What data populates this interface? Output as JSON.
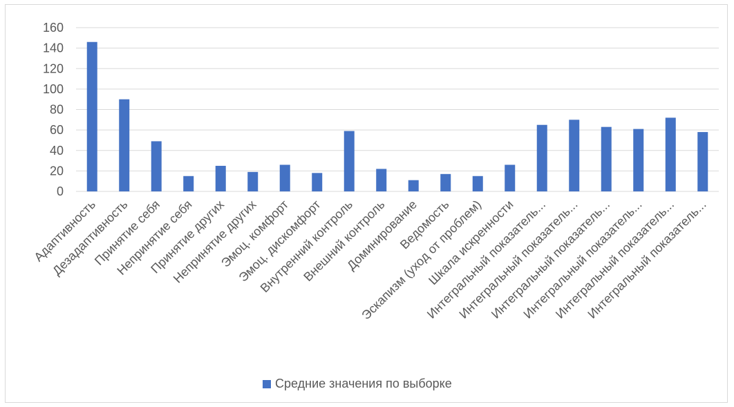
{
  "chart_data": {
    "type": "bar",
    "categories": [
      "Адаптивность",
      "Дезадаптивность",
      "Принятие себя",
      "Непринятие себя",
      "Принятие других",
      "Непринятие других",
      "Эмоц. комфорт",
      "Эмоц. дискомфорт",
      "Внутренний контроль",
      "Внешний контроль",
      "Доминирование",
      "Ведомость",
      "Эскапизм (уход от проблем)",
      "Шкала искренности",
      "Интегральный показатель...",
      "Интегральный показатель...",
      "Интегральный показатель...",
      "Интегральный показатель...",
      "Интегральный показатель...",
      "Интегральный показатель..."
    ],
    "series": [
      {
        "name": "Средние значения по выборке",
        "color": "#4472c4",
        "values": [
          146,
          90,
          49,
          15,
          25,
          19,
          26,
          18,
          59,
          22,
          11,
          17,
          15,
          26,
          65,
          70,
          63,
          61,
          72,
          58
        ]
      }
    ],
    "yticks": [
      "0",
      "20",
      "40",
      "60",
      "80",
      "100",
      "120",
      "140",
      "160"
    ],
    "ylim": [
      0,
      160
    ],
    "grid": true,
    "legend_position": "bottom",
    "gridline_color": "#d9d9d9"
  }
}
